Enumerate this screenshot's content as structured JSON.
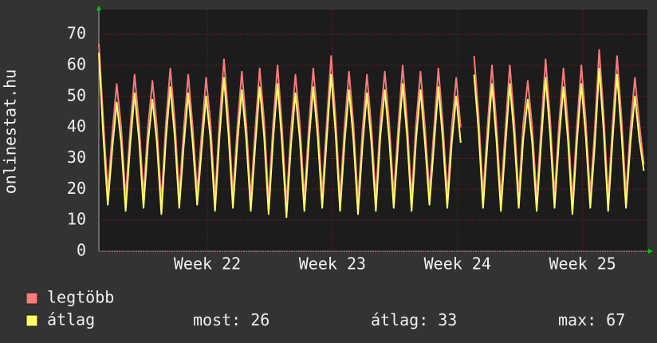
{
  "chart_data": {
    "type": "line",
    "y_label": "onlinestat.hu",
    "x": [
      0,
      0.25,
      0.5,
      0.75,
      1,
      1.25,
      1.5,
      1.75,
      2,
      2.25,
      2.5,
      2.75,
      3,
      3.25,
      3.5,
      3.75,
      4,
      4.25,
      4.5,
      4.75,
      5,
      5.25,
      5.5,
      5.75,
      6,
      6.25,
      6.5,
      6.75,
      7,
      7.25,
      7.5,
      7.75,
      8,
      8.25,
      8.5,
      8.75,
      9,
      9.25,
      9.5,
      9.75,
      10,
      10.25,
      10.5,
      10.75,
      11,
      11.25,
      11.5,
      11.75,
      12,
      12.25,
      12.5,
      12.75,
      13,
      13.25,
      13.5,
      13.75,
      14,
      14.25,
      14.5,
      14.75,
      15,
      15.25,
      15.5,
      15.75,
      16,
      16.25,
      16.5,
      16.75,
      17,
      17.25,
      17.5,
      17.75,
      18,
      18.25,
      18.5,
      18.75,
      19,
      19.25,
      19.5,
      19.75,
      20,
      20.25,
      20.5,
      20.75,
      21,
      21.25,
      21.5,
      21.75,
      22,
      22.25,
      22.5,
      22.75,
      23,
      23.25,
      23.5,
      23.75,
      24,
      24.25,
      24.5,
      24.75,
      25,
      25.25,
      25.5,
      25.75,
      26,
      26.25,
      26.5,
      26.75,
      27,
      27.25,
      27.5,
      27.75,
      28,
      28.25,
      28.5,
      28.75,
      29,
      29.25,
      29.5,
      29.75,
      30,
      30.25,
      30.5
    ],
    "series": [
      {
        "name": "legtöbb",
        "color": "#f77b7b",
        "values": [
          67,
          42,
          19,
          38,
          54,
          40,
          17,
          39,
          57,
          41,
          18,
          40,
          55,
          40,
          16,
          41,
          59,
          42,
          18,
          39,
          57,
          40,
          19,
          38,
          56,
          41,
          17,
          42,
          62,
          43,
          18,
          40,
          58,
          41,
          17,
          39,
          59,
          42,
          16,
          41,
          60,
          40,
          15,
          39,
          57,
          41,
          17,
          40,
          59,
          42,
          18,
          41,
          63,
          43,
          17,
          40,
          58,
          41,
          16,
          39,
          57,
          40,
          17,
          42,
          58,
          41,
          18,
          40,
          60,
          42,
          17,
          41,
          58,
          40,
          19,
          39,
          59,
          41,
          18,
          40,
          56,
          40,
          null,
          null,
          63,
          44,
          18,
          40,
          60,
          41,
          17,
          39,
          60,
          42,
          18,
          41,
          55,
          40,
          17,
          40,
          62,
          43,
          18,
          41,
          59,
          41,
          16,
          40,
          60,
          42,
          18,
          39,
          65,
          44,
          17,
          41,
          63,
          43,
          18,
          40,
          56,
          41,
          28
        ]
      },
      {
        "name": "átlag",
        "color": "#ffff66",
        "values": [
          64,
          37,
          15,
          33,
          48,
          35,
          13,
          34,
          51,
          36,
          14,
          35,
          49,
          35,
          12,
          36,
          53,
          37,
          14,
          34,
          51,
          35,
          15,
          33,
          50,
          36,
          13,
          37,
          56,
          38,
          14,
          35,
          52,
          36,
          13,
          34,
          53,
          37,
          12,
          36,
          54,
          35,
          11,
          34,
          51,
          36,
          13,
          35,
          53,
          37,
          14,
          36,
          57,
          38,
          13,
          35,
          52,
          36,
          12,
          34,
          51,
          35,
          13,
          37,
          52,
          36,
          14,
          35,
          54,
          37,
          13,
          36,
          52,
          35,
          15,
          34,
          53,
          36,
          14,
          35,
          50,
          35,
          null,
          null,
          57,
          39,
          14,
          35,
          54,
          36,
          13,
          34,
          54,
          37,
          14,
          36,
          49,
          35,
          13,
          35,
          56,
          38,
          14,
          36,
          53,
          36,
          12,
          35,
          54,
          37,
          14,
          34,
          59,
          39,
          13,
          36,
          57,
          38,
          14,
          35,
          50,
          36,
          26
        ]
      }
    ],
    "xlim": [
      0,
      30.7
    ],
    "xticks": [
      {
        "value": 6.07,
        "label": "Week 22"
      },
      {
        "value": 13.07,
        "label": "Week 23"
      },
      {
        "value": 20.07,
        "label": "Week 24"
      },
      {
        "value": 27.07,
        "label": "Week 25"
      }
    ],
    "ylim": [
      0,
      78
    ],
    "yticks": [
      0,
      10,
      20,
      30,
      40,
      50,
      60,
      70
    ],
    "grid": true,
    "stats": [
      {
        "label": "most:",
        "value": 26
      },
      {
        "label": "átlag:",
        "value": 33
      },
      {
        "label": "max:",
        "value": 67
      }
    ]
  }
}
